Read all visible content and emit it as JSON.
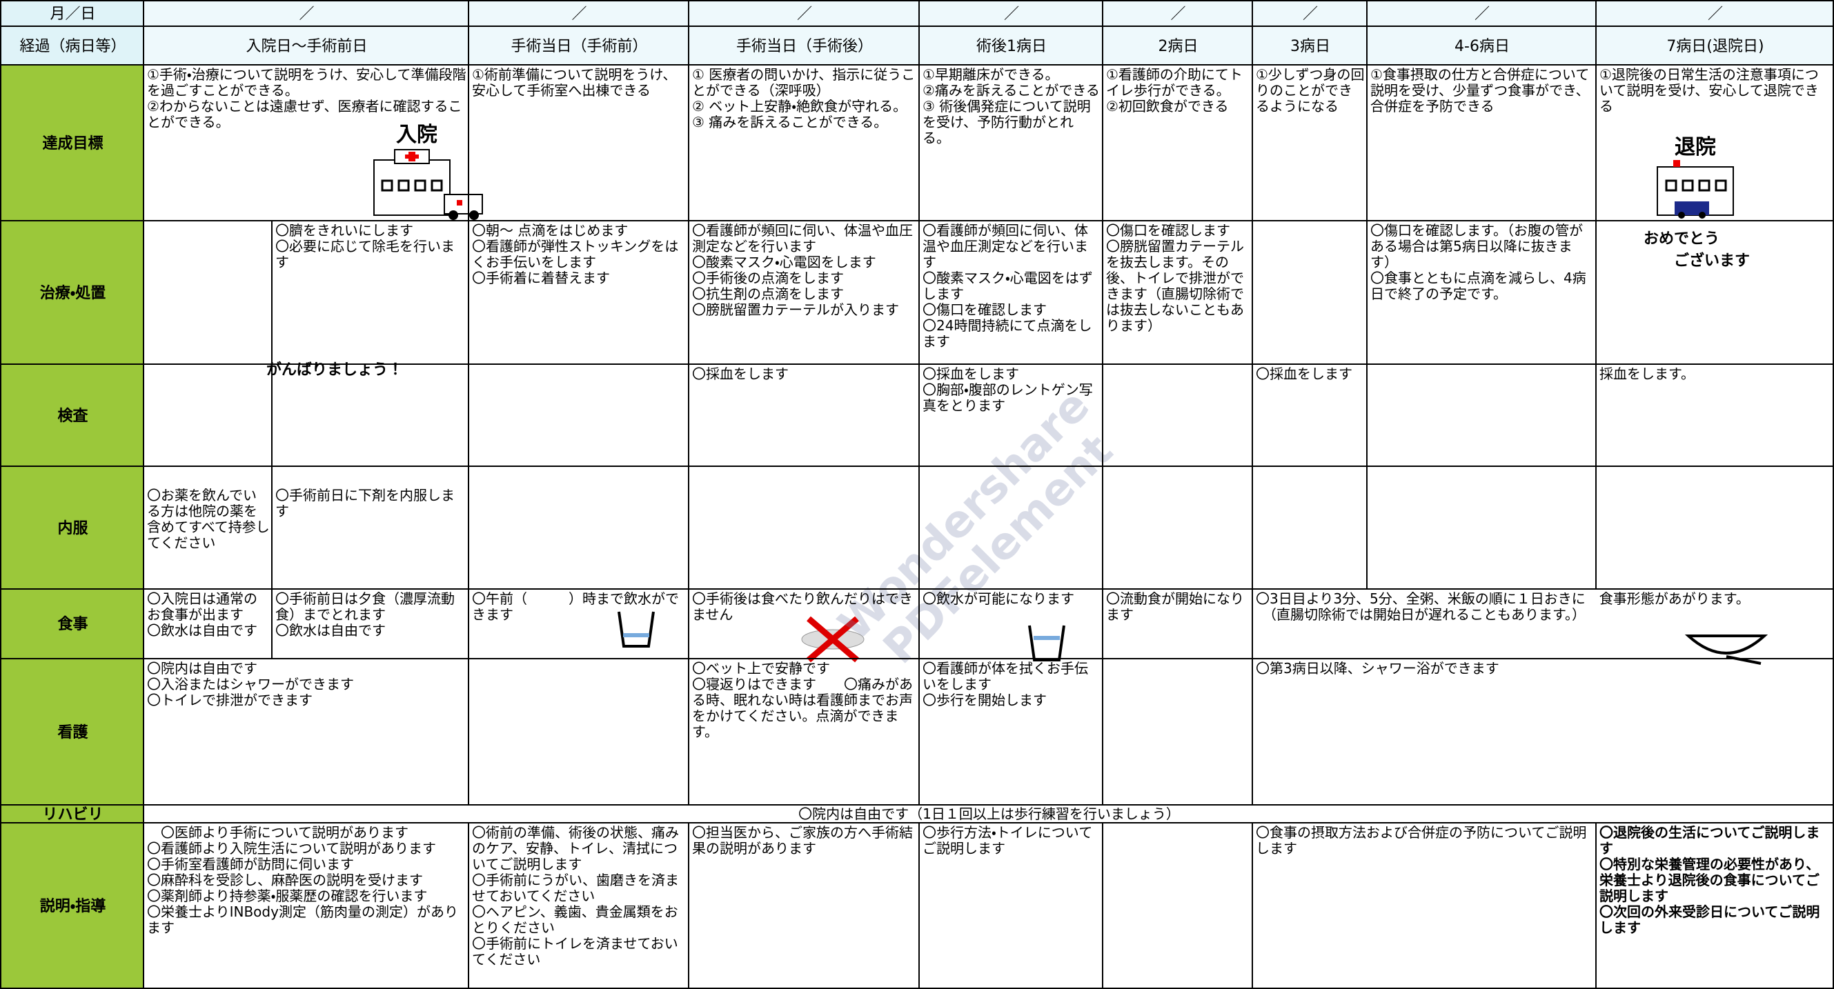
{
  "header": {
    "date_label": "月／日",
    "dates": [
      "／",
      "／",
      "／",
      "／",
      "／",
      "／",
      "／",
      "／"
    ],
    "progress_label": "経過（病日等）",
    "columns": [
      "入院日～手術前日",
      "手術当日（手術前）",
      "手術当日（手術後）",
      "術後1病日",
      "2病日",
      "3病日",
      "4-6病日",
      "7病日(退院日)"
    ]
  },
  "rows": [
    {
      "label": "達成目標",
      "cells": [
        "①手術・治療について説明をうけ、安心して準備段階を過ごすことができる。\n②わからないことは遠慮せず、医療者に確認することができる。",
        "①術前準備について説明をうけ、安心して手術室へ出棟できる",
        "① 医療者の問いかけ、指示に従うことができる（深呼吸）\n② ベット上安静・絶飲食が守れる。\n③ 痛みを訴えることができる。",
        "①早期離床ができる。\n②痛みを訴えることができる\n③ 術後偶発症について説明を受け、予防行動がとれる。",
        "①看護師の介助にてトイレ歩行ができる。\n②初回飲食ができる",
        "①少しずつ身の回りのことができるようになる",
        "①食事摂取の仕方と合併症について説明を受け、少量ずつ食事ができ、合併症を予防できる",
        "①退院後の日常生活の注意事項について説明を受け、安心して退院できる"
      ]
    },
    {
      "label": "治療・処置",
      "cells": [
        "〇臍をきれいにします\n〇必要に応じて除毛を行います",
        "〇朝～ 点滴をはじめます\n〇看護師が弾性ストッキングをはくお手伝いをします\n〇手術着に着替えます",
        "〇看護師が頻回に伺い、体温や血圧測定などを行います\n〇酸素マスク・心電図をします\n〇手術後の点滴をします\n〇抗生剤の点滴をします\n〇膀胱留置カテーテルが入ります",
        "〇看護師が頻回に伺い、体温や血圧測定などを行います\n〇酸素マスク・心電図をはずします\n〇傷口を確認します\n〇24時間持続にて点滴をします",
        "〇傷口を確認します\n〇膀胱留置カテーテルを抜去します。その後、トイレで排泄ができます（直腸切除術では抜去しないこともあります）",
        "〇傷口を確認します。（お腹の管がある場合は第5病日以降に抜きます）\n〇食事とともに点滴を減らし、4病日で終了の予定です。"
      ]
    },
    {
      "label": "検査",
      "cells": [
        "〇採血をします",
        "〇採血をします\n〇胸部・腹部のレントゲン写真をとります",
        "〇採血をします",
        "採血をします。"
      ]
    },
    {
      "label": "内服",
      "cells": [
        "〇お薬を飲んでいる方は他院の薬を含めてすべて持参してください",
        "〇手術前日に下剤を内服します"
      ]
    },
    {
      "label": "食事",
      "cells": [
        "〇入院日は通常のお食事が出ます\n〇飲水は自由です",
        "〇手術前日は夕食（濃厚流動食）までとれます\n〇飲水は自由です",
        "〇午前（　　　）時まで飲水ができます",
        "〇手術後は食べたり飲んだりはできません",
        "〇飲水が可能になります",
        "〇流動食が開始になります",
        "〇3日目より3分、5分、全粥、米飯の順に１日おきに　食事形態があがります。\n　（直腸切除術では開始日が遅れることもあります。）"
      ]
    },
    {
      "label": "看護",
      "cells": [
        "〇院内は自由です\n〇入浴またはシャワーができます\n〇トイレで排泄ができます",
        "〇ベット上で安静です\n〇寝返りはできます　　〇痛みがある時、眠れない時は看護師までお声をかけてください。点滴ができます。",
        "〇看護師が体を拭くお手伝いをします\n〇歩行を開始します",
        "〇第3病日以降、シャワー浴ができます"
      ]
    },
    {
      "label": "リハビリ",
      "cells": [
        "〇院内は自由です（1日１回以上は歩行練習を行いましょう）"
      ]
    },
    {
      "label": "説明・指導",
      "cells": [
        "　〇医師より手術について説明があります\n〇看護師より入院生活について説明があります\n〇手術室看護師が訪問に伺います\n〇麻酔科を受診し、麻酔医の説明を受けます\n〇薬剤師より持参薬・服薬歴の確認を行います\n〇栄養士よりINBody測定（筋肉量の測定）があります",
        "〇術前の準備、術後の状態、痛みのケア、安静、トイレ、清拭についてご説明します\n〇手術前にうがい、歯磨きを済ませておいてください\n〇ヘアピン、義歯、貴金属類をおとりください\n〇手術前にトイレを済ませておいてください",
        "〇担当医から、ご家族の方へ手術結果の説明があります",
        "〇歩行方法・トイレについてご説明します",
        "〇食事の摂取方法および合併症の予防についてご説明します",
        "〇退院後の生活についてご説明します\n〇特別な栄養管理の必要性があり、栄養士より退院後の食事についてご説明します\n〇次回の外来受診日についてご説明します"
      ]
    }
  ],
  "illustrations": {
    "admission": "入院",
    "discharge": "退院",
    "cheer": "がんばりましょう！",
    "congrats": "おめでとう\n　　ございます"
  },
  "watermark": "Wondershare\nPDFelement"
}
